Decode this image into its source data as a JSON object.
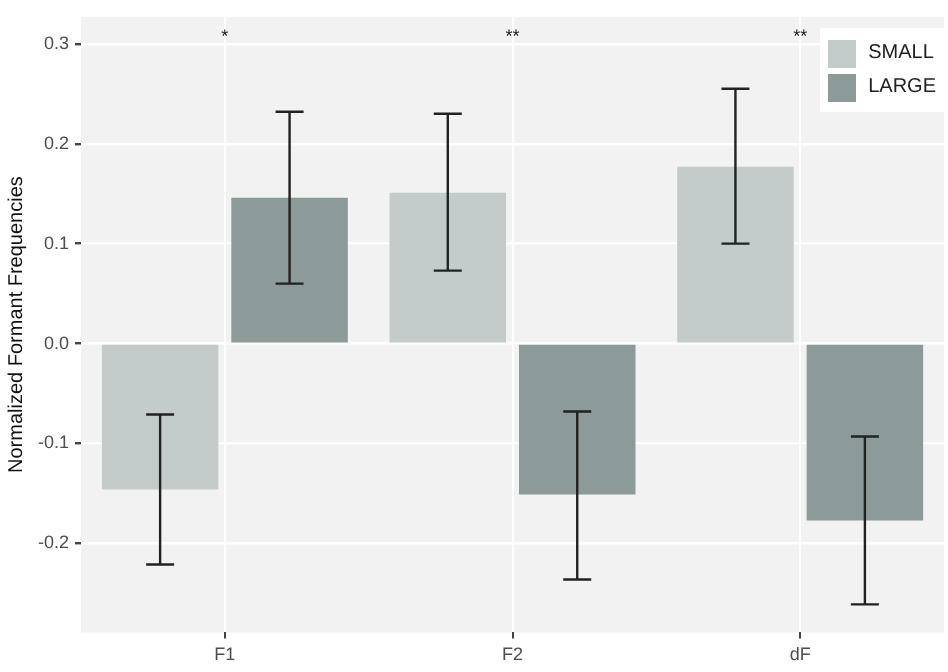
{
  "chart_data": {
    "type": "bar",
    "ylabel": "Normalized Formant Frequencies",
    "categories": [
      "F1",
      "F2",
      "dF"
    ],
    "series": [
      {
        "name": "SMALL",
        "color": "#c4cccb",
        "values": [
          -0.146,
          0.151,
          0.177
        ],
        "errors": [
          [
            -0.221,
            -0.071
          ],
          [
            0.073,
            0.23
          ],
          [
            0.1,
            0.255
          ]
        ]
      },
      {
        "name": "LARGE",
        "color": "#8c9b99",
        "values": [
          0.146,
          -0.151,
          -0.177
        ],
        "errors": [
          [
            0.06,
            0.232
          ],
          [
            -0.236,
            -0.068
          ],
          [
            -0.261,
            -0.093
          ]
        ]
      }
    ],
    "ylim": [
      -0.289,
      0.327
    ],
    "yticks": [
      {
        "value": -0.2,
        "label": "-0.2"
      },
      {
        "value": -0.1,
        "label": "-0.1"
      },
      {
        "value": 0,
        "label": "0.0"
      },
      {
        "value": 0.1,
        "label": "0.1"
      },
      {
        "value": 0.2,
        "label": "0.2"
      },
      {
        "value": 0.3,
        "label": "0.3"
      }
    ],
    "grid": true,
    "legend": "top right",
    "annotations": [
      "*",
      "**",
      "**"
    ]
  }
}
